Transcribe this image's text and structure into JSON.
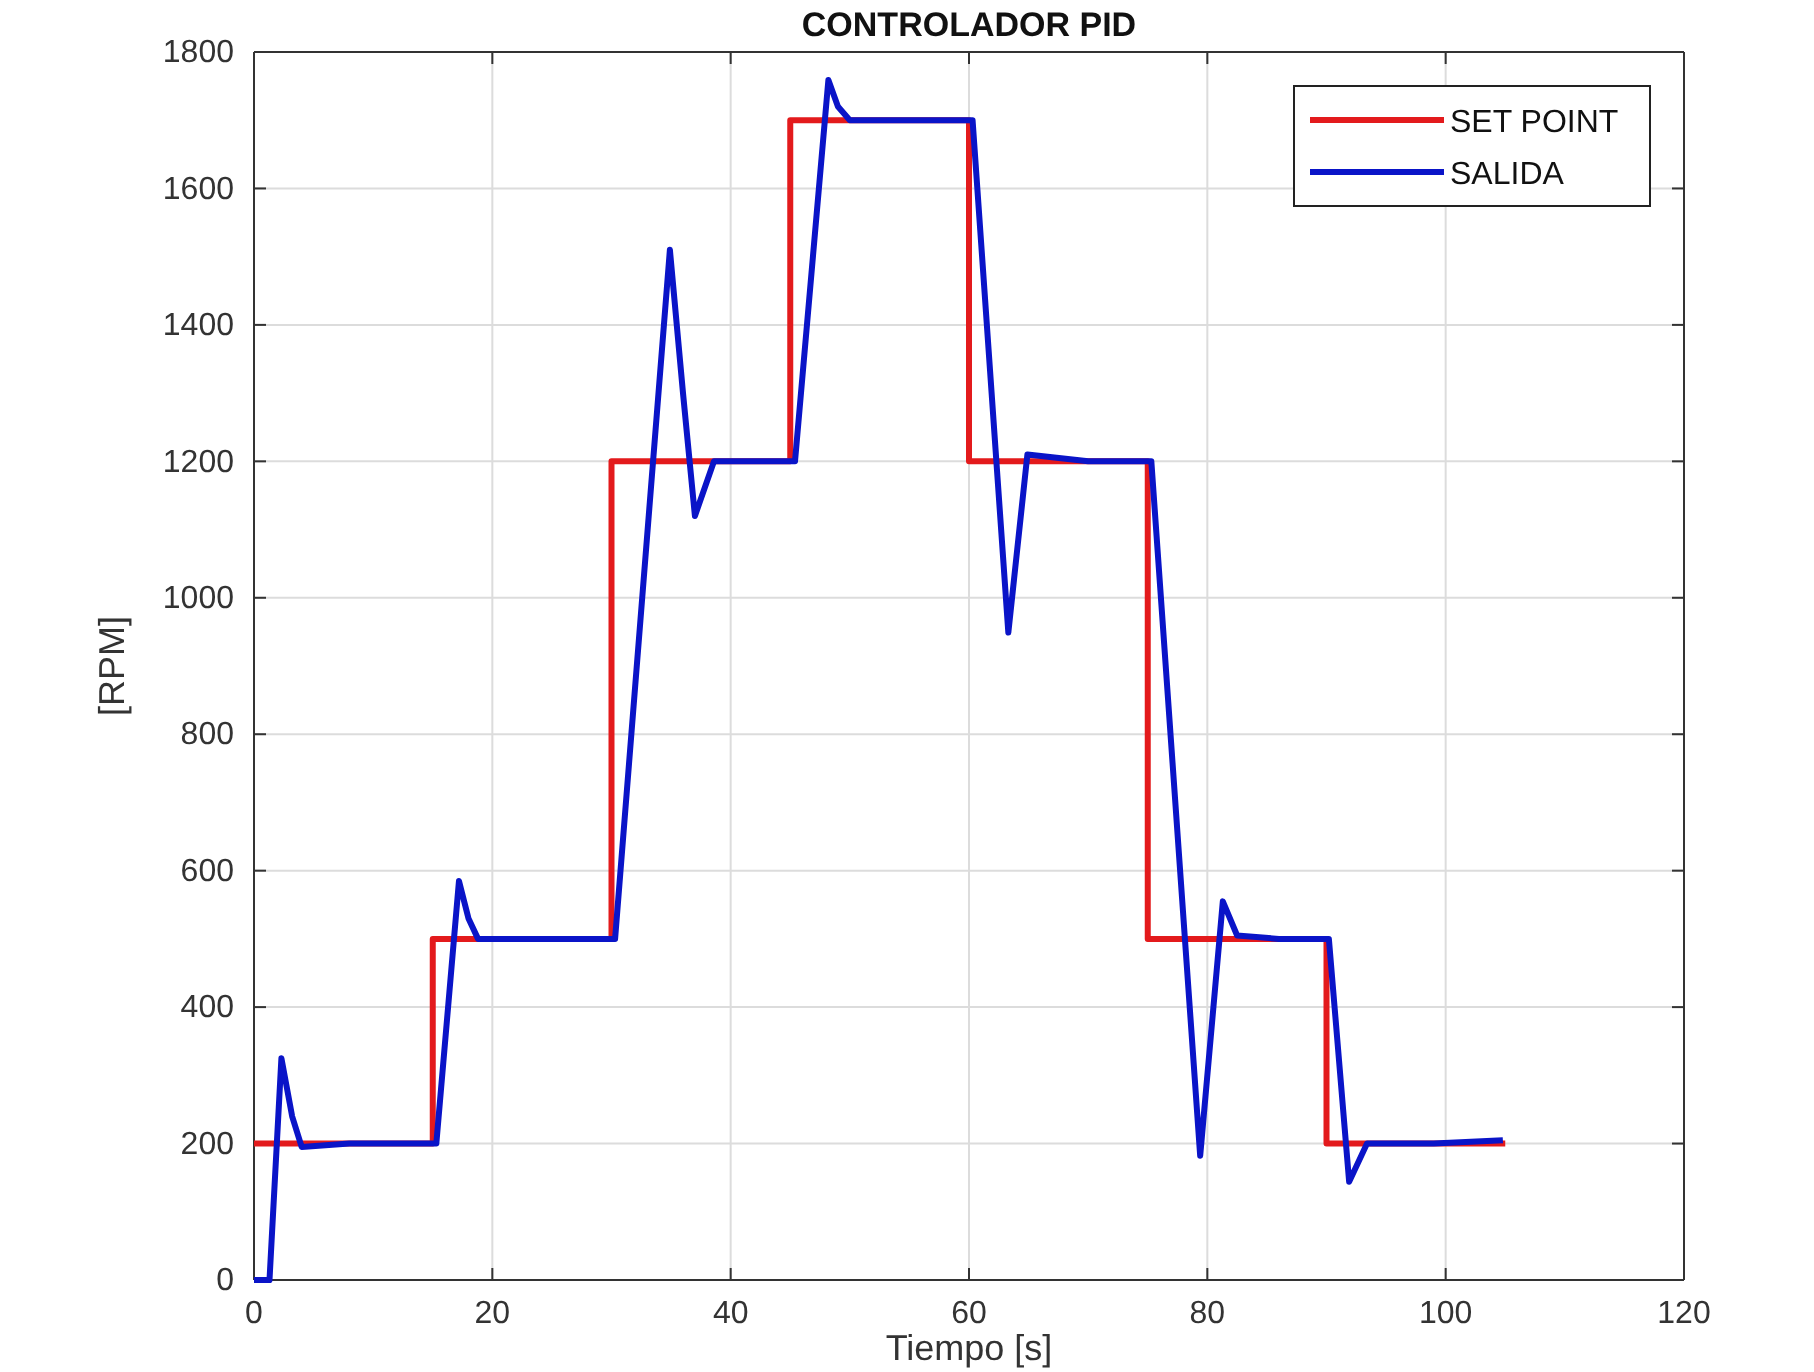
{
  "chart_data": {
    "type": "line",
    "title": "CONTROLADOR PID",
    "xlabel": "Tiempo [s]",
    "ylabel": "[RPM]",
    "xlim": [
      0,
      120
    ],
    "xticks": [
      0,
      20,
      40,
      60,
      80,
      100,
      120
    ],
    "ylim": [
      0,
      1800
    ],
    "yticks": [
      0,
      200,
      400,
      600,
      800,
      1000,
      1200,
      1400,
      1600,
      1800
    ],
    "grid": true,
    "legend": "top right",
    "line_style": "solid",
    "marker": "none",
    "series": [
      {
        "name": "SET POINT",
        "type": "step",
        "color": "#e31a1c",
        "x": [
          0,
          15,
          30,
          45,
          60,
          75,
          90,
          105
        ],
        "values": [
          200,
          500,
          1200,
          1700,
          1200,
          500,
          200,
          200
        ]
      },
      {
        "name": "SALIDA",
        "type": "line",
        "color": "#0a14c8",
        "x": [
          0,
          1.3,
          2.3,
          3.2,
          4.0,
          8,
          12,
          15.3,
          17.2,
          18.0,
          18.8,
          24,
          30.3,
          34.9,
          36.0,
          37.0,
          38.6,
          42,
          45.4,
          48.2,
          49.0,
          50.0,
          55,
          60.3,
          63.3,
          64.9,
          70,
          75.3,
          79.4,
          81.3,
          82.5,
          86,
          90.2,
          91.9,
          93.4,
          99,
          104.8
        ],
        "values": [
          0,
          0,
          325,
          240,
          195,
          200,
          200,
          200,
          585,
          530,
          500,
          500,
          500,
          1510,
          1300,
          1120,
          1200,
          1200,
          1200,
          1759,
          1720,
          1700,
          1700,
          1700,
          949,
          1210,
          1200,
          1200,
          182,
          555,
          505,
          500,
          500,
          144,
          200,
          200,
          205
        ]
      }
    ]
  }
}
